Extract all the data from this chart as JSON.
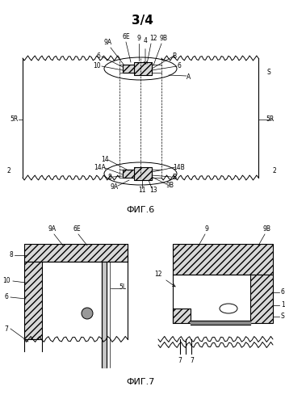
{
  "title": "3/4",
  "fig6_label": "ФИГ.6",
  "fig7_label": "ФИГ.7",
  "bg_color": "#ffffff",
  "line_color": "#000000",
  "hatch_fill": "#d8d8d8"
}
